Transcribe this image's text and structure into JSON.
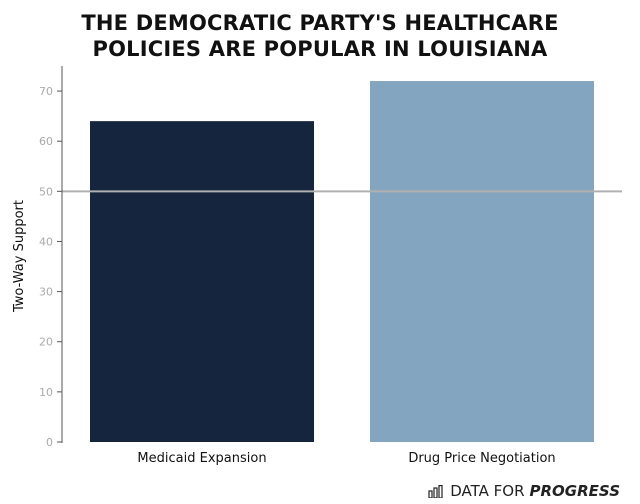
{
  "chart_data": {
    "type": "bar",
    "title_lines": [
      "THE DEMOCRATIC PARTY'S HEALTHCARE",
      "POLICIES ARE POPULAR IN LOUISIANA"
    ],
    "xlabel": "",
    "ylabel": "Two-Way Support",
    "categories": [
      "Medicaid Expansion",
      "Drug Price Negotiation"
    ],
    "values": [
      64,
      72
    ],
    "bar_colors": [
      "#14253d",
      "#84a5bf"
    ],
    "ylim": [
      0,
      75
    ],
    "yticks": [
      0,
      10,
      20,
      30,
      40,
      50,
      60,
      70
    ],
    "reference_line": {
      "y": 50,
      "color": "#b0b0b0"
    },
    "grid": false
  },
  "branding": {
    "prefix": "DATA FOR",
    "strong": "PROGRESS",
    "icon": "bar-chart-icon"
  }
}
